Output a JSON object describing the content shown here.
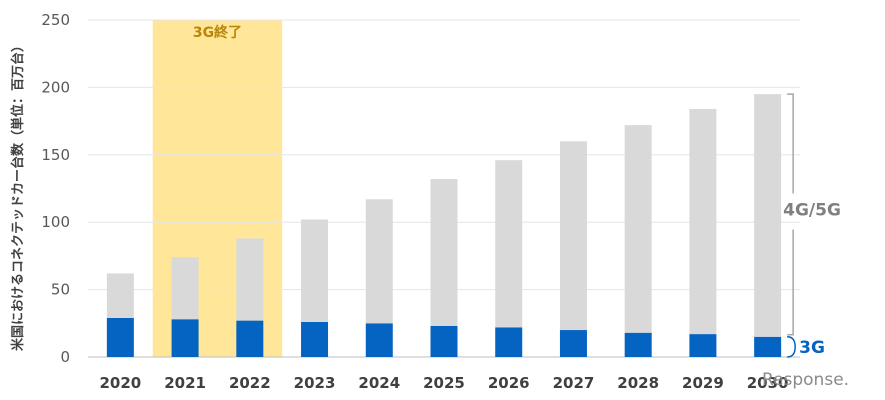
{
  "chart_data": {
    "type": "bar",
    "stacked": true,
    "categories": [
      "2020",
      "2021",
      "2022",
      "2023",
      "2024",
      "2025",
      "2026",
      "2027",
      "2028",
      "2029",
      "2030"
    ],
    "series": [
      {
        "name": "3G",
        "color": "#0563c1",
        "values": [
          29,
          28,
          27,
          26,
          25,
          23,
          22,
          20,
          18,
          17,
          15
        ]
      },
      {
        "name": "4G/5G",
        "color": "#d9d9d9",
        "values": [
          33,
          46,
          61,
          76,
          92,
          109,
          124,
          140,
          154,
          167,
          180
        ]
      }
    ],
    "ylabel": "米国におけるコネクテッドカー台数（単位：百万台）",
    "ylim": [
      0,
      250
    ],
    "yticks": [
      0,
      50,
      100,
      150,
      200,
      250
    ],
    "grid": true,
    "highlight": {
      "label": "3G終了",
      "from": "2021",
      "to": "2022",
      "color": "#ffe699"
    }
  },
  "watermark": "Response."
}
